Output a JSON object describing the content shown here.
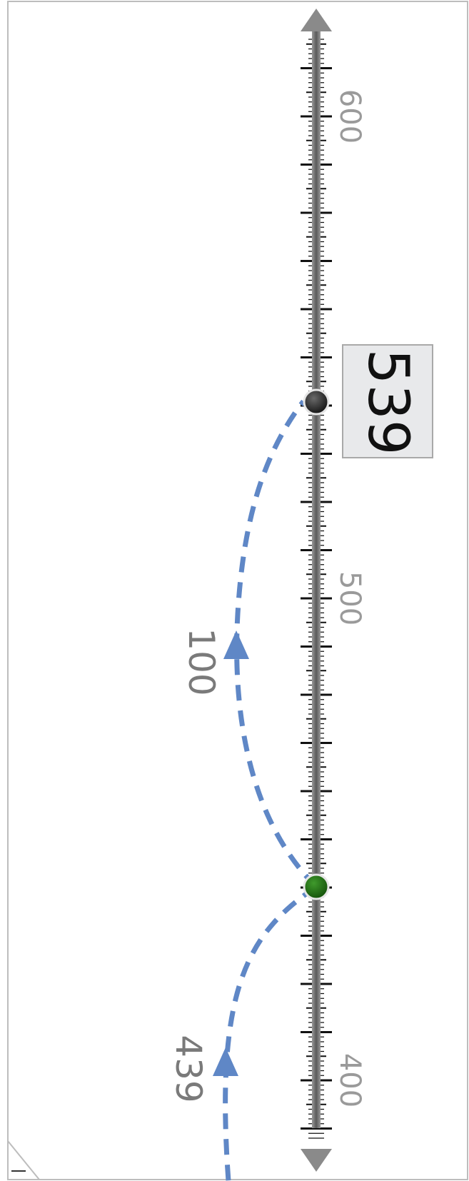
{
  "chart_data": {
    "type": "number_line",
    "orientation": "vertical",
    "axis": {
      "min": 383,
      "max": 622,
      "major_step": 10,
      "minor_step": 2,
      "labeled_ticks": [
        400,
        500,
        600
      ]
    },
    "tick_labels": [
      "400",
      "500",
      "600"
    ],
    "start": {
      "value": 439,
      "label": "439"
    },
    "jumps": [
      {
        "from": 439,
        "to": 439,
        "label": "439"
      },
      {
        "from": 439,
        "to": 539,
        "label": "100"
      }
    ],
    "points": [
      {
        "value": 439,
        "color": "#1f6e12",
        "role": "intermediate"
      },
      {
        "value": 539,
        "color": "#1a1a1a",
        "role": "result"
      }
    ],
    "result": {
      "value": 539,
      "label": "539"
    },
    "colors": {
      "arc": "#5f87c6",
      "axis": "#6d6d6d",
      "tick": "#111111",
      "label": "#9a9a9a"
    }
  }
}
